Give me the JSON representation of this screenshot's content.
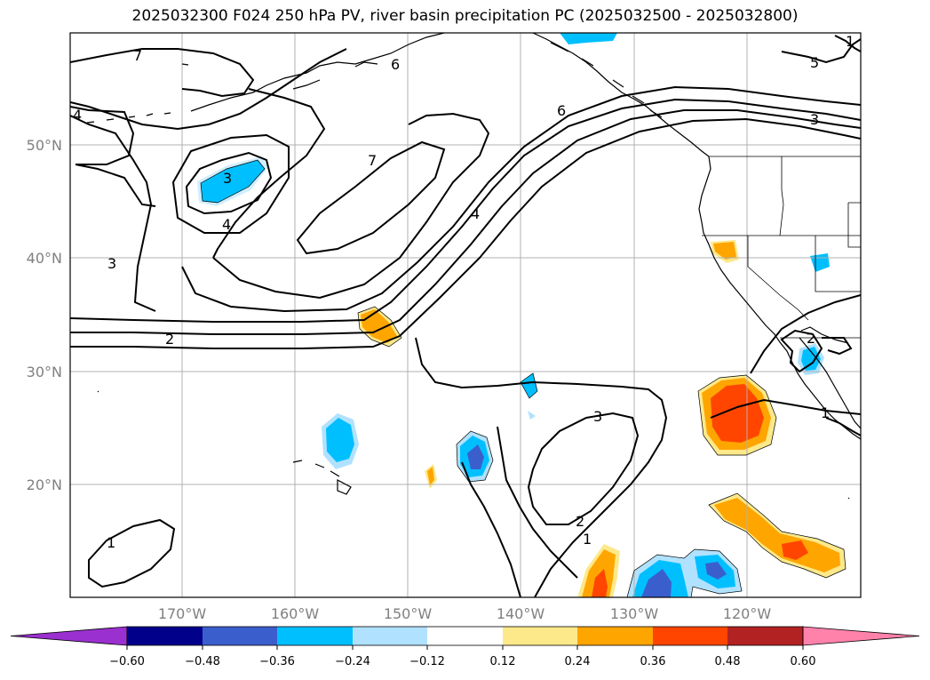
{
  "title": "2025032300 F024 250 hPa PV, river basin precipitation PC (2025032500 - 2025032800)",
  "lat_labels": [
    "50°N",
    "40°N",
    "30°N",
    "20°N"
  ],
  "lon_labels": [
    "170°W",
    "160°W",
    "150°W",
    "140°W",
    "130°W",
    "120°W"
  ],
  "pv_contour_labels": [
    "7",
    "6",
    "5",
    "4",
    "3",
    "7",
    "3",
    "4",
    "3",
    "4",
    "6",
    "2",
    "2",
    "3",
    "2",
    "1",
    "1",
    "1",
    "1"
  ],
  "colorbar": {
    "ticks": [
      "−0.60",
      "−0.48",
      "−0.36",
      "−0.24",
      "−0.12",
      "0.12",
      "0.24",
      "0.36",
      "0.48",
      "0.60"
    ],
    "colors": {
      "under": "#9b30d0",
      "neg_060_048": "#00008b",
      "neg_048_036": "#3a5fcd",
      "neg_036_024": "#00bfff",
      "neg_024_012": "#b0e2ff",
      "neutral": "#ffffff",
      "pos_012_024": "#fde98a",
      "pos_024_036": "#ffa500",
      "pos_036_048": "#ff4500",
      "pos_048_060": "#b22222",
      "over": "#ff82ab"
    }
  }
}
